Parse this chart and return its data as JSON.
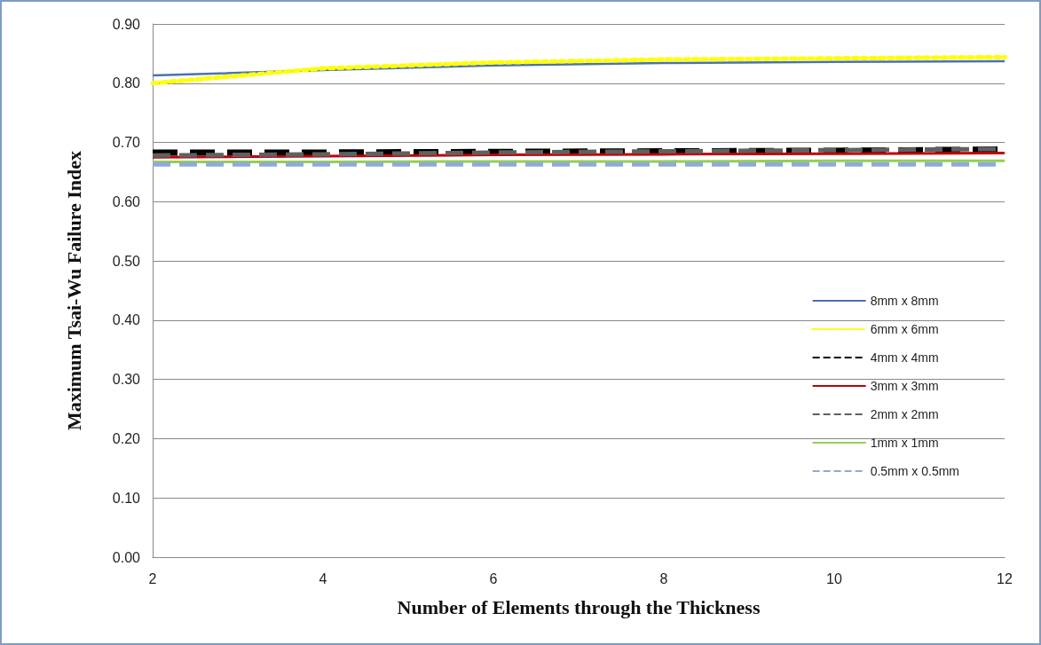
{
  "chart_data": {
    "type": "line",
    "xlabel": "Number of Elements through the Thickness",
    "ylabel": "Maximum Tsai-Wu Failure Index",
    "x": [
      2,
      4,
      6,
      8,
      10,
      12
    ],
    "series": [
      {
        "name": "8mm x 8mm",
        "color": "#4a72b0",
        "line_style": "solid",
        "values": [
          0.813,
          0.822,
          0.83,
          0.834,
          0.836,
          0.837
        ]
      },
      {
        "name": "6mm x 6mm",
        "color": "#ffff00",
        "line_style": "dotted",
        "values": [
          0.8,
          0.825,
          0.835,
          0.84,
          0.842,
          0.844
        ]
      },
      {
        "name": "4mm x 4mm",
        "color": "#000000",
        "line_style": "dashed",
        "values": [
          0.683,
          0.683,
          0.684,
          0.685,
          0.686,
          0.688
        ]
      },
      {
        "name": "3mm x 3mm",
        "color": "#c00000",
        "line_style": "solid",
        "values": [
          0.675,
          0.677,
          0.679,
          0.68,
          0.681,
          0.682
        ]
      },
      {
        "name": "2mm x 2mm",
        "color": "#606060",
        "line_style": "dashed",
        "values": [
          0.678,
          0.68,
          0.683,
          0.685,
          0.687,
          0.689
        ]
      },
      {
        "name": "1mm x 1mm",
        "color": "#92d050",
        "line_style": "solid",
        "values": [
          0.667,
          0.667,
          0.668,
          0.668,
          0.669,
          0.669
        ]
      },
      {
        "name": "0.5mm x 0.5mm",
        "color": "#8eaad6",
        "line_style": "dashed",
        "values": [
          0.663,
          0.663,
          0.663,
          0.663,
          0.663,
          0.663
        ]
      }
    ],
    "xlim": [
      2,
      12
    ],
    "xticks": [
      2,
      4,
      6,
      8,
      10,
      12
    ],
    "ylim": [
      0,
      0.9
    ],
    "yticks": [
      {
        "value": 0,
        "label": "0.00"
      },
      {
        "value": 0.1,
        "label": "0.10"
      },
      {
        "value": 0.2,
        "label": "0.20"
      },
      {
        "value": 0.3,
        "label": "0.30"
      },
      {
        "value": 0.4,
        "label": "0.40"
      },
      {
        "value": 0.5,
        "label": "0.50"
      },
      {
        "value": 0.6,
        "label": "0.60"
      },
      {
        "value": 0.7,
        "label": "0.70"
      },
      {
        "value": 0.8,
        "label": "0.80"
      },
      {
        "value": 0.9,
        "label": "0.90"
      }
    ],
    "grid": "y",
    "legend": "right",
    "marker": "none"
  }
}
